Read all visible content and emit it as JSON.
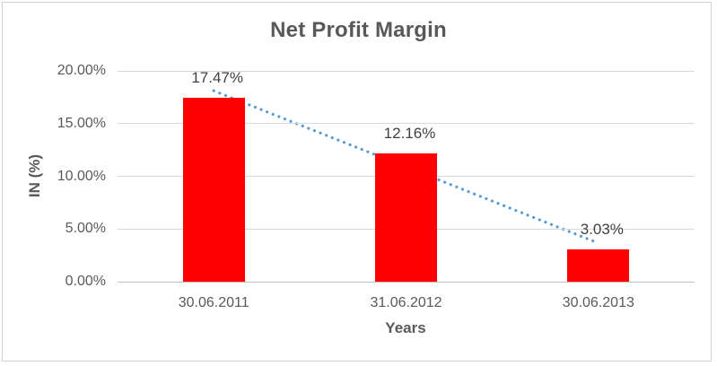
{
  "chart_data": {
    "type": "bar",
    "title": "Net Profit Margin",
    "xlabel": "Years",
    "ylabel": "IN (%)",
    "categories": [
      "30.06.2011",
      "31.06.2012",
      "30.06.2013"
    ],
    "values": [
      17.47,
      12.16,
      3.03
    ],
    "data_labels": [
      "17.47%",
      "12.16%",
      "3.03%"
    ],
    "ylim": [
      0,
      20
    ],
    "ytick_values": [
      0,
      5,
      10,
      15,
      20
    ],
    "ytick_labels": [
      "0.00%",
      "5.00%",
      "10.00%",
      "15.00%",
      "20.00%"
    ],
    "grid": true,
    "legend_position": "none",
    "bar_color": "#FF0000",
    "gridline_color": "#D9D9D9",
    "axis_line_color": "#BFBFBF",
    "text_color": "#595959",
    "data_label_color": "#404040",
    "trendline": {
      "style": "dotted",
      "color": "#5B9BD5",
      "start_value": 18.11,
      "end_value": 3.66
    }
  }
}
